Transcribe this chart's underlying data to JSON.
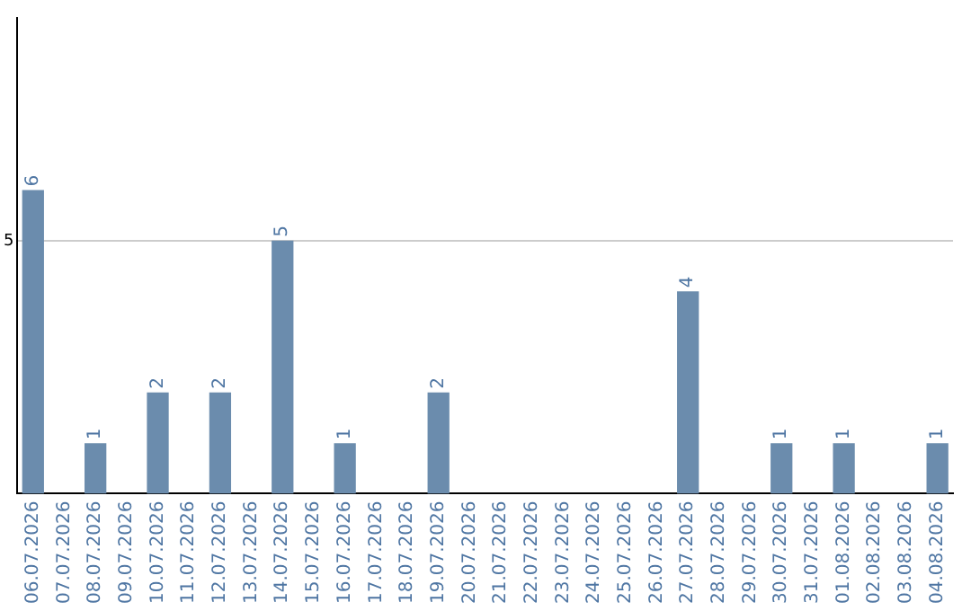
{
  "chart_data": {
    "type": "bar",
    "categories": [
      "06.07.2026",
      "07.07.2026",
      "08.07.2026",
      "09.07.2026",
      "10.07.2026",
      "11.07.2026",
      "12.07.2026",
      "13.07.2026",
      "14.07.2026",
      "15.07.2026",
      "16.07.2026",
      "17.07.2026",
      "18.07.2026",
      "19.07.2026",
      "20.07.2026",
      "21.07.2026",
      "22.07.2026",
      "23.07.2026",
      "24.07.2026",
      "25.07.2026",
      "26.07.2026",
      "27.07.2026",
      "28.07.2026",
      "29.07.2026",
      "30.07.2026",
      "31.07.2026",
      "01.08.2026",
      "02.08.2026",
      "03.08.2026",
      "04.08.2026"
    ],
    "values": [
      6,
      0,
      1,
      0,
      2,
      0,
      2,
      0,
      5,
      0,
      1,
      0,
      0,
      2,
      0,
      0,
      0,
      0,
      0,
      0,
      0,
      4,
      0,
      0,
      1,
      0,
      1,
      0,
      0,
      1
    ],
    "value_labels": [
      "6",
      null,
      "1",
      null,
      "2",
      null,
      "2",
      null,
      "5",
      null,
      "1",
      null,
      null,
      "2",
      null,
      null,
      null,
      null,
      null,
      null,
      null,
      "4",
      null,
      null,
      "1",
      null,
      "1",
      null,
      null,
      "1"
    ],
    "color": "#6b8cad",
    "ylim": [
      0,
      9.4
    ],
    "yticks": [
      5
    ],
    "grid": "y",
    "legend": false
  }
}
